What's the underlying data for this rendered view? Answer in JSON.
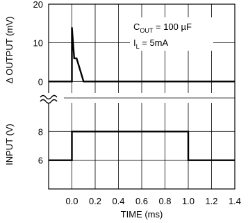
{
  "chart_data": [
    {
      "type": "line",
      "panel": "top",
      "ylabel": "Δ OUTPUT (mV)",
      "xlabel": "",
      "yticks": [
        "0",
        "10",
        "20"
      ],
      "yticks_values": [
        0,
        10,
        20
      ],
      "ylim": [
        -3,
        20
      ],
      "xlim": [
        -0.2,
        1.4
      ],
      "grid": true,
      "series": [
        {
          "x": [
            -0.2,
            0.0,
            0.0,
            0.02,
            0.04,
            0.06,
            0.1,
            1.4
          ],
          "values": [
            0,
            0,
            14,
            6,
            6,
            4,
            0,
            0
          ]
        }
      ],
      "annotations": [
        {
          "text": "C",
          "sub": "OUT",
          "rest": " = 100 µF"
        },
        {
          "text": "I",
          "sub": "L",
          "rest": " = 5mA"
        }
      ]
    },
    {
      "type": "line",
      "panel": "bottom",
      "ylabel": "INPUT (V)",
      "xlabel": "TIME (ms)",
      "yticks": [
        "6",
        "8"
      ],
      "yticks_values": [
        6,
        8
      ],
      "ylim": [
        4,
        10
      ],
      "xlim": [
        -0.2,
        1.4
      ],
      "xticks": [
        "0.0",
        "0.2",
        "0.4",
        "0.6",
        "0.8",
        "1.0",
        "1.2",
        "1.4"
      ],
      "xticks_values": [
        0.0,
        0.2,
        0.4,
        0.6,
        0.8,
        1.0,
        1.2,
        1.4
      ],
      "grid": true,
      "series": [
        {
          "x": [
            -0.2,
            0.0,
            0.0,
            1.0,
            1.0,
            1.4
          ],
          "values": [
            6,
            6,
            8,
            8,
            6,
            6
          ]
        }
      ]
    }
  ],
  "axis_break_symbol": "≈",
  "colors": {
    "line": "#000000",
    "grid": "#000000",
    "background": "#ffffff"
  }
}
